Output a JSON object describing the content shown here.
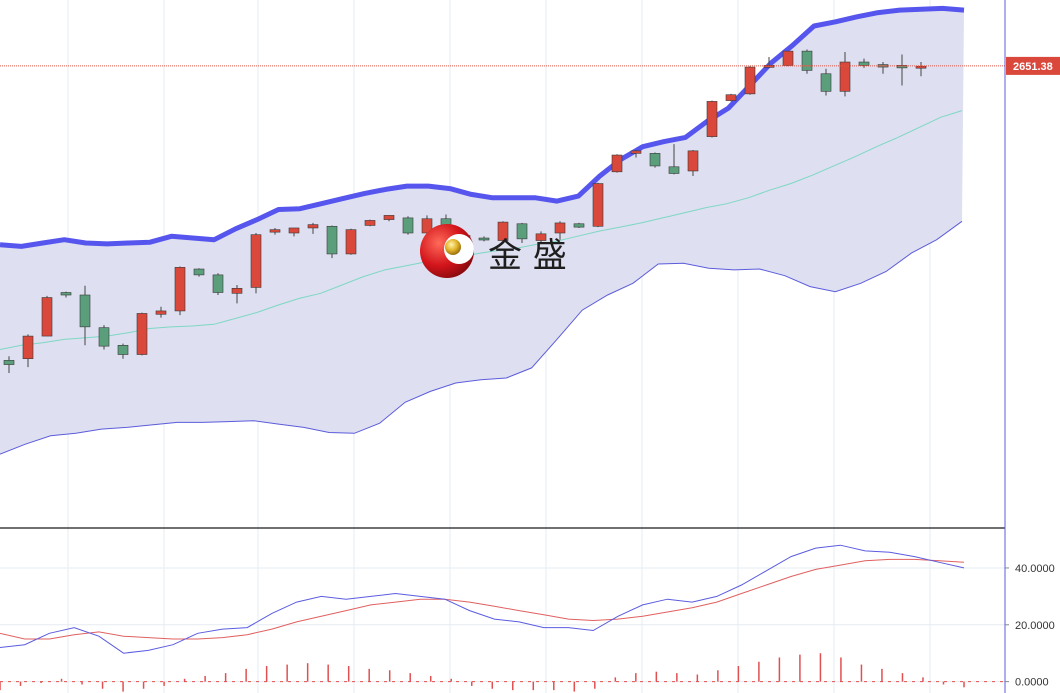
{
  "colors": {
    "up": "#d9483b",
    "down": "#5a9e7c",
    "upper_band": "#5656ee",
    "lower_band": "#5c5cdc",
    "band_fill": "#dedff0",
    "mid_band": "#7dd8c4",
    "price_line": "#e05545",
    "macd_line": "#5b5ce0",
    "signal_line": "#e06060",
    "histogram": "#e05050",
    "separator": "#404040",
    "grid": "#e6ecf1"
  },
  "watermark": {
    "logo": "jinsheng-logo-icon",
    "text": "金 盛"
  },
  "price_tag": {
    "label": "2651.38",
    "value": 2651.38
  },
  "chart_data": [
    {
      "type": "candlestick",
      "name": "price",
      "ylim": [
        2100,
        2730
      ],
      "candles": [
        [
          2300,
          2305,
          2285,
          2295
        ],
        [
          2302,
          2331,
          2292,
          2329
        ],
        [
          2329,
          2377,
          2329,
          2375
        ],
        [
          2381,
          2382,
          2375,
          2378
        ],
        [
          2378,
          2389,
          2318,
          2340
        ],
        [
          2339,
          2342,
          2313,
          2317
        ],
        [
          2318,
          2320,
          2302,
          2307
        ],
        [
          2307,
          2357,
          2306,
          2356
        ],
        [
          2355,
          2364,
          2351,
          2359
        ],
        [
          2359,
          2412,
          2354,
          2411
        ],
        [
          2409,
          2410,
          2400,
          2402
        ],
        [
          2402,
          2404,
          2378,
          2381
        ],
        [
          2380,
          2390,
          2368,
          2386
        ],
        [
          2387,
          2452,
          2380,
          2450
        ],
        [
          2453,
          2458,
          2450,
          2456
        ],
        [
          2452,
          2458,
          2448,
          2458
        ],
        [
          2458,
          2464,
          2451,
          2462
        ],
        [
          2460,
          2461,
          2422,
          2427
        ],
        [
          2427,
          2457,
          2426,
          2456
        ],
        [
          2461,
          2468,
          2460,
          2467
        ],
        [
          2468,
          2473,
          2466,
          2473
        ],
        [
          2470,
          2472,
          2450,
          2452
        ],
        [
          2452,
          2473,
          2450,
          2469
        ],
        [
          2469,
          2474,
          2445,
          2449
        ],
        [
          2447,
          2452,
          2444,
          2449
        ],
        [
          2446,
          2448,
          2442,
          2445
        ],
        [
          2443,
          2466,
          2441,
          2465
        ],
        [
          2463,
          2464,
          2440,
          2445
        ],
        [
          2443,
          2454,
          2440,
          2451
        ],
        [
          2452,
          2466,
          2444,
          2464
        ],
        [
          2463,
          2464,
          2458,
          2459
        ],
        [
          2460,
          2512,
          2459,
          2511
        ],
        [
          2525,
          2546,
          2524,
          2545
        ],
        [
          2547,
          2551,
          2542,
          2550
        ],
        [
          2547,
          2548,
          2530,
          2532
        ],
        [
          2531,
          2558,
          2522,
          2523
        ],
        [
          2526,
          2551,
          2520,
          2550
        ],
        [
          2567,
          2610,
          2566,
          2609
        ],
        [
          2610,
          2618,
          2609,
          2617
        ],
        [
          2618,
          2651,
          2617,
          2650
        ],
        [
          2651,
          2662,
          2650,
          2652
        ],
        [
          2652,
          2669,
          2651,
          2669
        ],
        [
          2669,
          2671,
          2642,
          2646
        ],
        [
          2642,
          2648,
          2616,
          2621
        ],
        [
          2621,
          2668,
          2615,
          2656
        ],
        [
          2656,
          2660,
          2649,
          2652
        ],
        [
          2653,
          2656,
          2642,
          2650
        ],
        [
          2652,
          2665,
          2628,
          2649
        ],
        [
          2650,
          2656,
          2639,
          2651
        ]
      ],
      "upper_band": [
        2438,
        2436,
        2440,
        2444,
        2440,
        2439,
        2440,
        2441,
        2448,
        2446,
        2444,
        2457,
        2468,
        2480,
        2481,
        2487,
        2493,
        2499,
        2504,
        2508,
        2508,
        2505,
        2498,
        2494,
        2494,
        2494,
        2490,
        2496,
        2520,
        2540,
        2555,
        2561,
        2566,
        2585,
        2601,
        2628,
        2655,
        2676,
        2699,
        2704,
        2710,
        2715,
        2718,
        2719,
        2720,
        2718
      ],
      "middle_band": [
        2313,
        2318,
        2321,
        2325,
        2327,
        2329,
        2333,
        2338,
        2340,
        2341,
        2343,
        2350,
        2357,
        2366,
        2374,
        2380,
        2390,
        2400,
        2408,
        2413,
        2418,
        2422,
        2426,
        2430,
        2433,
        2438,
        2442,
        2448,
        2454,
        2459,
        2464,
        2470,
        2476,
        2482,
        2487,
        2494,
        2503,
        2511,
        2521,
        2532,
        2543,
        2555,
        2566,
        2578,
        2590,
        2598
      ],
      "lower_band": [
        2188,
        2200,
        2210,
        2213,
        2218,
        2220,
        2223,
        2226,
        2226,
        2227,
        2228,
        2224,
        2220,
        2214,
        2213,
        2225,
        2250,
        2263,
        2273,
        2277,
        2279,
        2291,
        2325,
        2360,
        2378,
        2392,
        2415,
        2416,
        2410,
        2408,
        2409,
        2401,
        2388,
        2382,
        2392,
        2406,
        2428,
        2444,
        2466
      ],
      "price_line": 2651.38
    },
    {
      "type": "macd",
      "name": "indicator",
      "ylim": [
        -4,
        53
      ],
      "y_ticks": [
        0,
        20,
        40
      ],
      "y_tick_labels": [
        "0.0000",
        "20.0000",
        "40.0000"
      ],
      "macd": [
        12,
        13,
        17,
        19,
        16,
        10,
        11,
        13,
        17,
        18.5,
        19,
        24,
        28,
        30,
        29,
        30,
        31,
        30,
        29,
        25,
        22,
        21,
        19,
        19,
        18,
        23,
        27,
        29,
        28,
        30,
        34,
        39,
        44,
        47,
        48,
        46,
        45.5,
        44,
        42,
        40
      ],
      "signal": [
        17,
        15,
        15,
        16.5,
        17.5,
        16,
        15.5,
        15,
        15,
        15.5,
        16.5,
        18.5,
        21,
        23,
        25,
        27,
        28,
        29,
        29,
        28,
        26.5,
        25,
        23.5,
        22,
        21.5,
        22,
        23,
        24.5,
        26,
        28,
        31,
        34,
        37,
        39.5,
        41,
        42.5,
        43,
        43,
        42.5,
        42
      ],
      "histogram": [
        -3,
        -1.5,
        -0.5,
        1,
        -1,
        -2.5,
        -3.5,
        -2.5,
        -1.5,
        1,
        2,
        3,
        4.5,
        5.5,
        6,
        6.5,
        6,
        5.5,
        4.5,
        4,
        3,
        2,
        1,
        -1.5,
        -2.5,
        -3,
        -3,
        -3,
        -3.5,
        -2.5,
        1.5,
        3,
        3.5,
        3,
        2.5,
        4,
        5.5,
        7,
        8.5,
        9.5,
        10,
        8.5,
        6,
        4.5,
        3,
        1.5,
        -1,
        -2
      ]
    }
  ]
}
